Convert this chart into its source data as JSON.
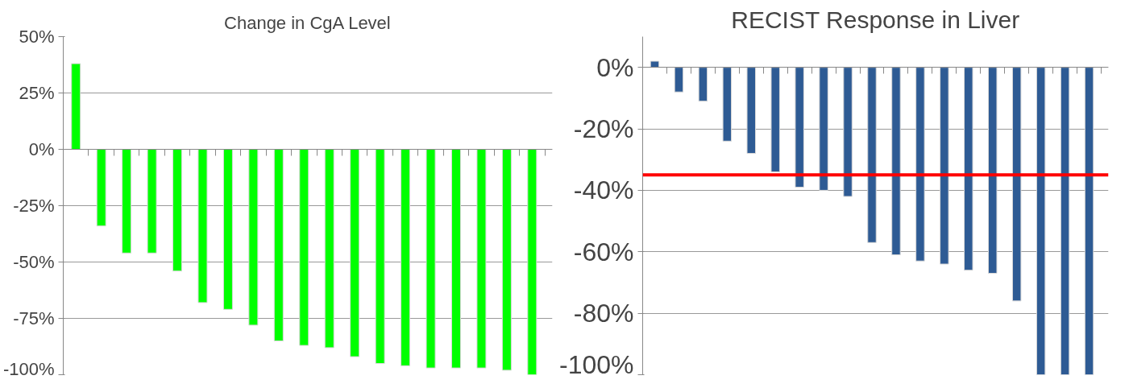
{
  "chart_data": [
    {
      "type": "bar",
      "title": "Change in CgA Level",
      "categories": [
        null,
        null,
        null,
        null,
        null,
        null,
        null,
        null,
        null,
        null,
        null,
        null,
        null,
        null,
        null,
        null,
        null,
        null,
        null
      ],
      "series": [
        {
          "color": "#00ff00",
          "values": [
            38,
            -34,
            -46,
            -46,
            -54,
            -68,
            -71,
            -78,
            -85,
            -87,
            -88,
            -92,
            -95,
            -96,
            -97,
            -97,
            -97,
            -98,
            -100
          ]
        }
      ],
      "ylim": [
        -100,
        50
      ],
      "yticks": [
        {
          "value": -100,
          "label": "-100%"
        },
        {
          "value": -75,
          "label": "-75%"
        },
        {
          "value": -50,
          "label": "-50%"
        },
        {
          "value": -25,
          "label": "-25%"
        },
        {
          "value": 0,
          "label": "0%"
        },
        {
          "value": 25,
          "label": "25%"
        },
        {
          "value": 50,
          "label": "50%"
        }
      ],
      "grid": "y",
      "tick_labels": "y"
    },
    {
      "type": "bar",
      "title": "RECIST Response in Liver",
      "categories": [
        null,
        null,
        null,
        null,
        null,
        null,
        null,
        null,
        null,
        null,
        null,
        null,
        null,
        null,
        null,
        null,
        null,
        null,
        null
      ],
      "series": [
        {
          "color": "#2e5b94",
          "values": [
            2,
            -8,
            -11,
            -24,
            -28,
            -34,
            -39,
            -40,
            -42,
            -57,
            -61,
            -63,
            -64,
            -66,
            -67,
            -76,
            -100,
            -100,
            -100
          ]
        }
      ],
      "ylim": [
        -100,
        10
      ],
      "yticks": [
        {
          "value": -100,
          "label": "-100%"
        },
        {
          "value": -80,
          "label": "-80%"
        },
        {
          "value": -60,
          "label": "-60%"
        },
        {
          "value": -40,
          "label": "-40%"
        },
        {
          "value": -20,
          "label": "-20%"
        },
        {
          "value": 0,
          "label": "0%"
        }
      ],
      "ref_lines": [
        {
          "axis": "y",
          "value": -35,
          "color": "#ff0000"
        }
      ],
      "grid": "y",
      "tick_labels": "y"
    }
  ]
}
